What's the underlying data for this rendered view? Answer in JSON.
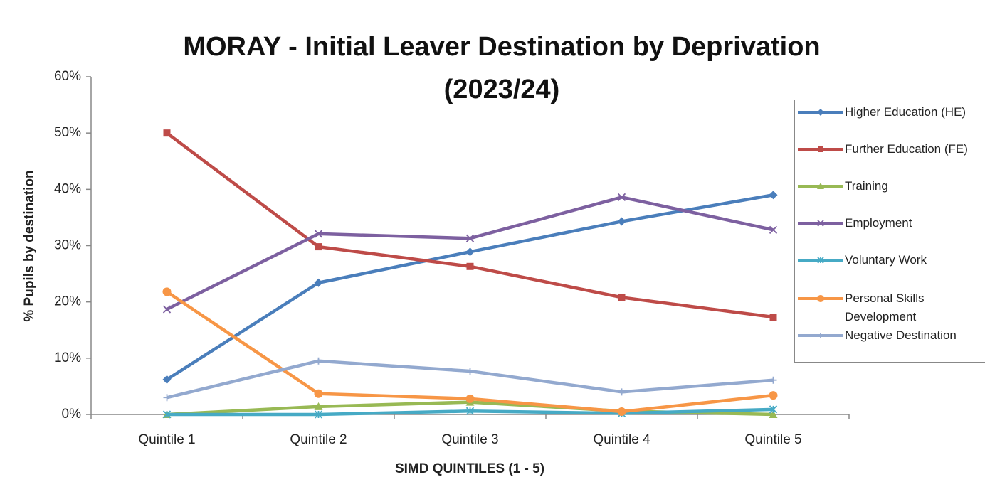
{
  "chart_data": {
    "type": "line",
    "title": "MORAY - Initial Leaver Destination by Deprivation (2023/24)",
    "x_label": "SIMD QUINTILES (1 - 5)",
    "y_label": "% Pupils by destination",
    "categories": [
      "Quintile 1",
      "Quintile 2",
      "Quintile 3",
      "Quintile 4",
      "Quintile 5"
    ],
    "ylim": [
      0,
      60
    ],
    "yticks": [
      {
        "value": 0,
        "label": "0%"
      },
      {
        "value": 10,
        "label": "10%"
      },
      {
        "value": 20,
        "label": "20%"
      },
      {
        "value": 30,
        "label": "30%"
      },
      {
        "value": 40,
        "label": "40%"
      },
      {
        "value": 50,
        "label": "50%"
      },
      {
        "value": 60,
        "label": "60%"
      }
    ],
    "legend": "right",
    "series": [
      {
        "name": "Higher Education (HE)",
        "color": "#4a7ebb",
        "marker": "diamond",
        "values": [
          6.2,
          23.4,
          28.9,
          34.3,
          39.0
        ]
      },
      {
        "name": "Further Education (FE)",
        "color": "#be4b48",
        "marker": "square",
        "values": [
          50.0,
          29.8,
          26.3,
          20.8,
          17.3
        ]
      },
      {
        "name": "Training",
        "color": "#98b954",
        "marker": "triangle",
        "values": [
          0,
          1.4,
          2.2,
          0.6,
          0
        ]
      },
      {
        "name": "Employment",
        "color": "#7d60a0",
        "marker": "x",
        "values": [
          18.7,
          32.1,
          31.3,
          38.6,
          32.8
        ]
      },
      {
        "name": "Voluntary Work",
        "color": "#46aac5",
        "marker": "star",
        "values": [
          0,
          0,
          0.6,
          0.2,
          0.9
        ]
      },
      {
        "name": "Personal Skills Development",
        "color": "#f79646",
        "marker": "circle",
        "values": [
          21.8,
          3.7,
          2.8,
          0.5,
          3.4
        ]
      },
      {
        "name": "Negative Destination",
        "color": "#93a9cf",
        "marker": "plus",
        "values": [
          3.0,
          9.5,
          7.7,
          4.0,
          6.1
        ]
      }
    ]
  }
}
